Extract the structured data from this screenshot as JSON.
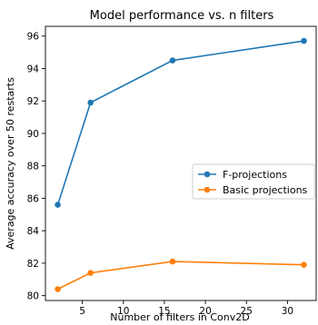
{
  "chart_data": {
    "type": "line",
    "title": "Model performance vs. n filters",
    "xlabel": "Number of filters in Conv2D",
    "ylabel": "Average accuracy over 50 restarts",
    "xlim": [
      0.5,
      33.5
    ],
    "ylim": [
      79.7,
      96.6
    ],
    "xticks": [
      5,
      10,
      15,
      20,
      25,
      30
    ],
    "yticks": [
      80,
      82,
      84,
      86,
      88,
      90,
      92,
      94,
      96
    ],
    "grid": false,
    "legend_position": "center-right",
    "series": [
      {
        "name": "F-projections",
        "color": "#1f77b4",
        "x": [
          2,
          6,
          16,
          32
        ],
        "y": [
          85.6,
          91.9,
          94.5,
          95.7
        ]
      },
      {
        "name": "Basic projections",
        "color": "#ff7f0e",
        "x": [
          2,
          6,
          16,
          32
        ],
        "y": [
          80.4,
          81.4,
          82.1,
          81.9
        ]
      }
    ]
  }
}
